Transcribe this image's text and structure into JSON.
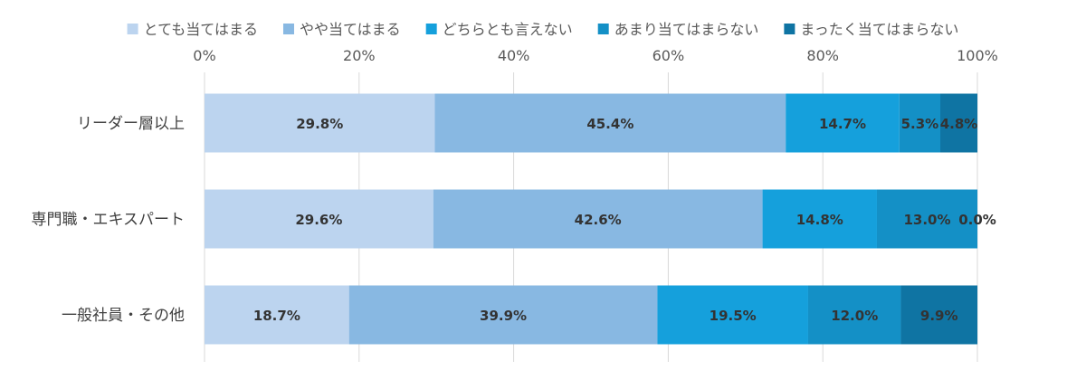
{
  "chart_data": {
    "type": "bar",
    "orientation": "horizontal",
    "stacked": true,
    "xlim": [
      0,
      100
    ],
    "grid": true,
    "legend_position": "top",
    "x_ticks": [
      "0%",
      "20%",
      "40%",
      "60%",
      "80%",
      "100%"
    ],
    "categories": [
      "リーダー層以上",
      "専門職・エキスパート",
      "一般社員・その他"
    ],
    "series": [
      {
        "name": "とても当てはまる",
        "values": [
          29.8,
          29.6,
          18.7
        ],
        "labels": [
          "29.8%",
          "29.6%",
          "18.7%"
        ],
        "color": "#bcd4ef"
      },
      {
        "name": "やや当てはまる",
        "values": [
          45.4,
          42.6,
          39.9
        ],
        "labels": [
          "45.4%",
          "42.6%",
          "39.9%"
        ],
        "color": "#88b8e2"
      },
      {
        "name": "どちらとも言えない",
        "values": [
          14.7,
          14.8,
          19.5
        ],
        "labels": [
          "14.7%",
          "14.8%",
          "19.5%"
        ],
        "color": "#15a0dc"
      },
      {
        "name": "あまり当てはまらない",
        "values": [
          5.3,
          13.0,
          12.0
        ],
        "labels": [
          "5.3%",
          "13.0%",
          "12.0%"
        ],
        "color": "#1490c6"
      },
      {
        "name": "まったく当てはまらない",
        "values": [
          4.8,
          0.0,
          9.9
        ],
        "labels": [
          "4.8%",
          "0.0%",
          "9.9%"
        ],
        "color": "#0f74a3"
      }
    ]
  }
}
